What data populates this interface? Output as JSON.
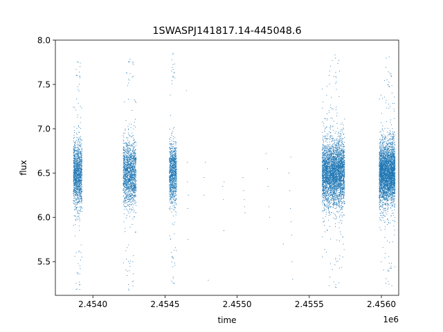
{
  "chart_data": {
    "type": "scatter",
    "title": "1SWASPJ141817.14-445048.6",
    "xlabel": "time",
    "ylabel": "flux",
    "x_offset_label": "1e6",
    "xlim": [
      2453740,
      2456120
    ],
    "ylim": [
      5.12,
      8.0
    ],
    "x_ticks": [
      2454000,
      2454500,
      2455000,
      2455500,
      2456000
    ],
    "x_tick_labels": [
      "2.4540",
      "2.4545",
      "2.4550",
      "2.4555",
      "2.4560"
    ],
    "y_ticks": [
      5.5,
      6.0,
      6.5,
      7.0,
      7.5,
      8.0
    ],
    "y_tick_labels": [
      "5.5",
      "6.0",
      "6.5",
      "7.0",
      "7.5",
      "8.0"
    ],
    "grid": false,
    "marker_color": "#1f77b4",
    "series": [
      {
        "clusters": [
          {
            "x_start": 2453865,
            "x_end": 2453925,
            "y_center": 6.5,
            "y_min": 5.16,
            "y_max": 7.76,
            "n": 1300
          },
          {
            "x_start": 2454210,
            "x_end": 2454300,
            "y_center": 6.5,
            "y_min": 5.16,
            "y_max": 7.8,
            "n": 1500
          },
          {
            "x_start": 2454530,
            "x_end": 2454580,
            "y_center": 6.5,
            "y_min": 5.25,
            "y_max": 7.87,
            "n": 1000
          },
          {
            "x_start": 2455590,
            "x_end": 2455745,
            "y_center": 6.5,
            "y_min": 5.2,
            "y_max": 7.86,
            "n": 3600
          },
          {
            "x_start": 2455985,
            "x_end": 2456095,
            "y_center": 6.5,
            "y_min": 5.15,
            "y_max": 7.82,
            "n": 3400
          }
        ],
        "sparse_points": [
          [
            2454655,
            6.62
          ],
          [
            2454655,
            6.4
          ],
          [
            2454657,
            6.1
          ],
          [
            2454660,
            5.75
          ],
          [
            2454648,
            7.43
          ],
          [
            2454662,
            6.25
          ],
          [
            2454770,
            6.25
          ],
          [
            2454770,
            6.45
          ],
          [
            2454780,
            6.62
          ],
          [
            2454800,
            5.29
          ],
          [
            2454900,
            6.35
          ],
          [
            2454905,
            6.2
          ],
          [
            2454910,
            6.4
          ],
          [
            2454908,
            5.85
          ],
          [
            2455040,
            6.45
          ],
          [
            2455045,
            6.3
          ],
          [
            2455050,
            6.2
          ],
          [
            2455052,
            6.12
          ],
          [
            2455055,
            6.05
          ],
          [
            2455200,
            6.72
          ],
          [
            2455210,
            6.55
          ],
          [
            2455215,
            6.35
          ],
          [
            2455220,
            6.12
          ],
          [
            2455225,
            6.0
          ],
          [
            2455320,
            5.7
          ],
          [
            2455360,
            6.5
          ],
          [
            2455365,
            6.3
          ],
          [
            2455370,
            6.1
          ],
          [
            2455375,
            5.95
          ],
          [
            2455378,
            5.8
          ],
          [
            2455380,
            5.5
          ],
          [
            2455385,
            5.3
          ],
          [
            2455372,
            6.68
          ]
        ]
      }
    ]
  }
}
